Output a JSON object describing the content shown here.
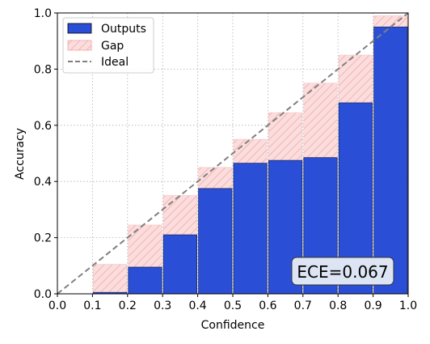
{
  "chart_data": {
    "type": "bar",
    "title": "",
    "xlabel": "Confidence",
    "ylabel": "Accuracy",
    "xlim": [
      0,
      1
    ],
    "ylim": [
      0,
      1
    ],
    "xticks": [
      "0.0",
      "0.1",
      "0.2",
      "0.3",
      "0.4",
      "0.5",
      "0.6",
      "0.7",
      "0.8",
      "0.9",
      "1.0"
    ],
    "yticks": [
      "0.0",
      "0.2",
      "0.4",
      "0.6",
      "0.8",
      "1.0"
    ],
    "grid": true,
    "legend_position": "top-left",
    "bin_edges": [
      0.0,
      0.1,
      0.2,
      0.3,
      0.4,
      0.5,
      0.6,
      0.7,
      0.8,
      0.9,
      1.0
    ],
    "series": [
      {
        "name": "Outputs",
        "color": "#2a4fd6",
        "values": [
          0.0,
          0.005,
          0.095,
          0.21,
          0.375,
          0.465,
          0.475,
          0.485,
          0.68,
          0.95
        ]
      },
      {
        "name": "Gap",
        "color": "#f4b8b8",
        "style": "hatched",
        "values": [
          0.0,
          0.105,
          0.245,
          0.35,
          0.45,
          0.55,
          0.645,
          0.75,
          0.85,
          0.99
        ]
      },
      {
        "name": "Ideal",
        "color": "#808080",
        "style": "dashed-line",
        "x": [
          0,
          1
        ],
        "y": [
          0,
          1
        ]
      }
    ],
    "annotation": {
      "text": "ECE=0.067",
      "position": "bottom-right"
    }
  }
}
